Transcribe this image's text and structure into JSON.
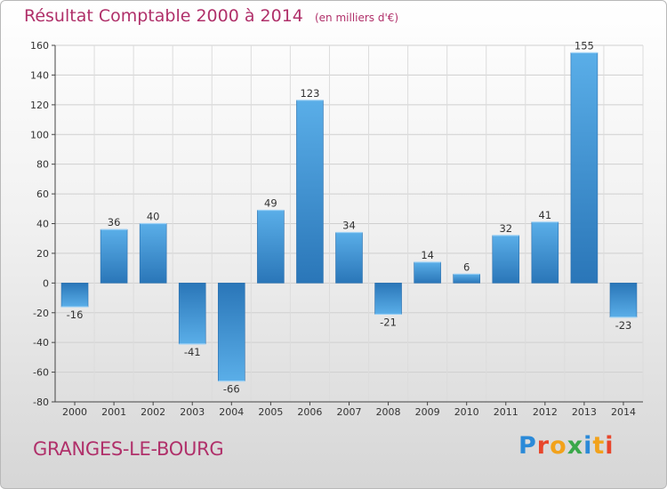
{
  "chart_data": {
    "type": "bar",
    "title": "Résultat Comptable 2000 à 2014",
    "subtitle": "(en milliers d'€)",
    "categories": [
      "2000",
      "2001",
      "2002",
      "2003",
      "2004",
      "2005",
      "2006",
      "2007",
      "2008",
      "2009",
      "2010",
      "2011",
      "2012",
      "2013",
      "2014"
    ],
    "values": [
      -16,
      36,
      40,
      -41,
      -66,
      49,
      123,
      34,
      -21,
      14,
      6,
      32,
      41,
      155,
      -23
    ],
    "ylim": [
      -80,
      160
    ],
    "yticks": [
      -80,
      -60,
      -40,
      -20,
      0,
      20,
      40,
      60,
      80,
      100,
      120,
      140,
      160
    ],
    "grid": true,
    "bar_color": "#3a8fd6"
  },
  "footer": {
    "commune": "GRANGES-LE-BOURG",
    "logo": "Proxiti"
  },
  "colors": {
    "title": "#b0306a",
    "logo_letters": [
      "#2b8ad8",
      "#e8462b",
      "#f2a21b",
      "#3aa84a",
      "#2b8ad8",
      "#f2a21b",
      "#e8462b"
    ]
  }
}
